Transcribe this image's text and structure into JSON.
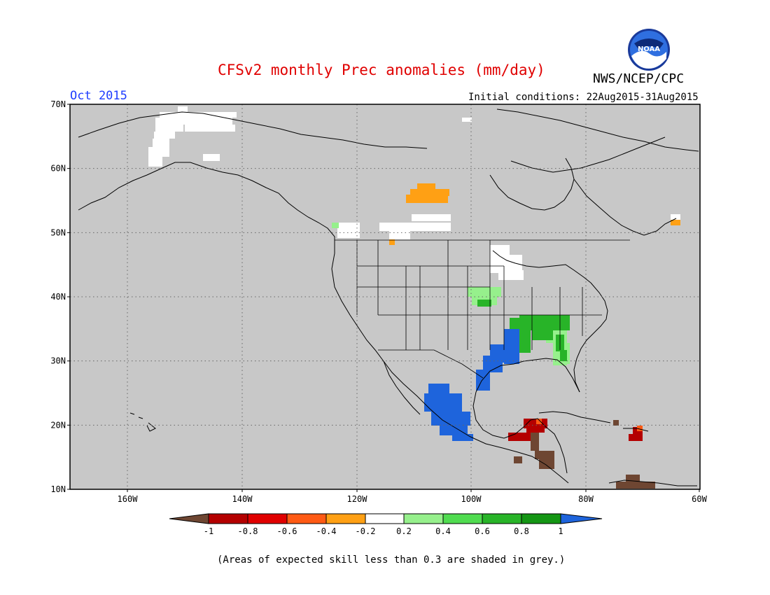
{
  "header": {
    "title": "CFSv2 monthly Prec anomalies (mm/day)",
    "period": "Oct 2015",
    "agency": "NWS/NCEP/CPC",
    "initial_conditions": "Initial conditions: 22Aug2015-31Aug2015",
    "logo_text": "NOAA"
  },
  "map": {
    "lat_labels": [
      "70N",
      "60N",
      "50N",
      "40N",
      "30N",
      "20N",
      "10N"
    ],
    "lon_labels": [
      "160W",
      "140W",
      "120W",
      "100W",
      "80W",
      "60W"
    ],
    "background_color": "#c8c8c8",
    "grid": "dotted"
  },
  "legend": {
    "tick_labels": [
      "-1",
      "-0.8",
      "-0.6",
      "-0.4",
      "-0.2",
      "0.2",
      "0.4",
      "0.6",
      "0.8",
      "1"
    ],
    "colors": [
      "#6e4632",
      "#b40000",
      "#e00000",
      "#ff5a14",
      "#ffa014",
      "#ffffff",
      "#96f08c",
      "#50dc50",
      "#28b428",
      "#149614",
      "#1e64dc"
    ]
  },
  "footnote": "(Areas of expected skill less than 0.3 are shaded in grey.)"
}
